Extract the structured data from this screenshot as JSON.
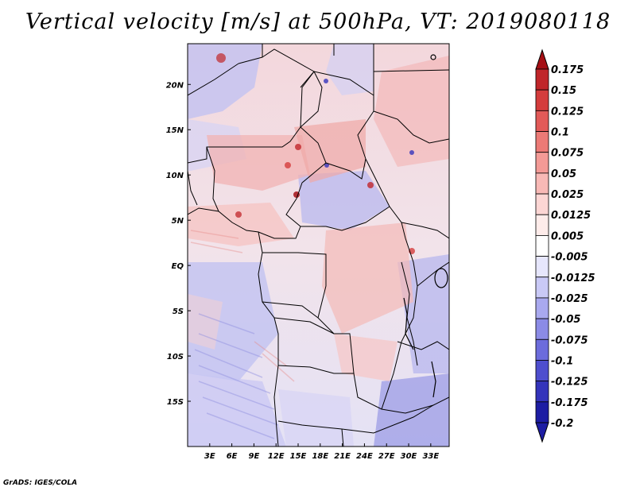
{
  "title": "Vertical velocity [m/s] at 500hPa, VT: 2019080118",
  "credit": "GrADS: IGES/COLA",
  "map": {
    "lon_range": [
      0,
      35.5
    ],
    "lat_range": [
      -20,
      24.5
    ],
    "lon_ticks": [
      {
        "value": 3,
        "label": "3E"
      },
      {
        "value": 6,
        "label": "6E"
      },
      {
        "value": 9,
        "label": "9E"
      },
      {
        "value": 12,
        "label": "12E"
      },
      {
        "value": 15,
        "label": "15E"
      },
      {
        "value": 18,
        "label": "18E"
      },
      {
        "value": 21,
        "label": "21E"
      },
      {
        "value": 24,
        "label": "24E"
      },
      {
        "value": 27,
        "label": "27E"
      },
      {
        "value": 30,
        "label": "30E"
      },
      {
        "value": 33,
        "label": "33E"
      }
    ],
    "lat_ticks": [
      {
        "value": 20,
        "label": "20N"
      },
      {
        "value": 15,
        "label": "15N"
      },
      {
        "value": 10,
        "label": "10N"
      },
      {
        "value": 5,
        "label": "5N"
      },
      {
        "value": 0,
        "label": "EQ"
      },
      {
        "value": -5,
        "label": "5S"
      },
      {
        "value": -10,
        "label": "10S"
      },
      {
        "value": -15,
        "label": "15S"
      }
    ]
  },
  "colorbar": {
    "levels": [
      {
        "label": "0.175",
        "color": "#a50f15"
      },
      {
        "label": "0.15",
        "color": "#c0262a"
      },
      {
        "label": "0.125",
        "color": "#d43c3c"
      },
      {
        "label": "0.1",
        "color": "#e25a58"
      },
      {
        "label": "0.075",
        "color": "#ec7a76"
      },
      {
        "label": "0.05",
        "color": "#f39a96"
      },
      {
        "label": "0.025",
        "color": "#f8b9b6"
      },
      {
        "label": "0.0125",
        "color": "#fcd6d4"
      },
      {
        "label": "0.005",
        "color": "#feecea"
      },
      {
        "label": "-0.005",
        "color": "#ffffff"
      },
      {
        "label": "-0.0125",
        "color": "#e6e6fc"
      },
      {
        "label": "-0.025",
        "color": "#c9c9f6"
      },
      {
        "label": "-0.05",
        "color": "#a9a9ef"
      },
      {
        "label": "-0.075",
        "color": "#8b8be6"
      },
      {
        "label": "-0.1",
        "color": "#6c6cdc"
      },
      {
        "label": "-0.125",
        "color": "#4e4ece"
      },
      {
        "label": "-0.175",
        "color": "#3434bb"
      },
      {
        "label": "-0.2",
        "color": "#1d1da3"
      }
    ],
    "top_color": "#a50f15",
    "bottom_color": "#1d1da3"
  }
}
